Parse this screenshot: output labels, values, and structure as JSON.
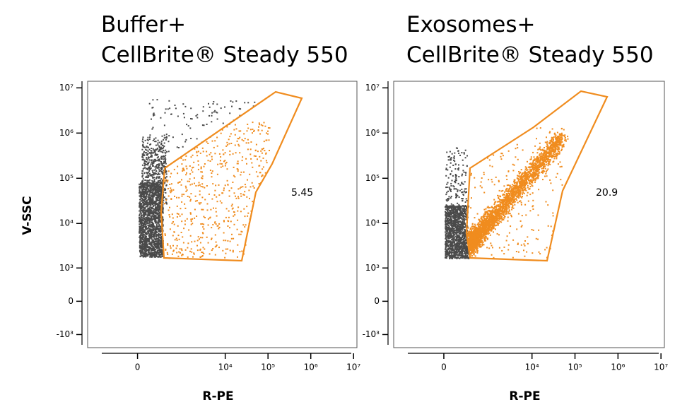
{
  "chart_data": [
    {
      "type": "scatter",
      "title_lines": [
        "Buffer+",
        "CellBrite® Steady 550"
      ],
      "y_label": "V-SSC",
      "x_label": "R-PE",
      "xlim": [
        -1300,
        12000000
      ],
      "ylim": [
        -2000,
        14000000
      ],
      "xticks": [
        0,
        {
          "value": 10000,
          "label": "10⁴"
        },
        {
          "value": 100000,
          "label": "10⁵"
        },
        {
          "value": 1000000,
          "label": "10⁶"
        },
        {
          "value": 10000000,
          "label": "10⁷"
        }
      ],
      "yticks": [
        {
          "value": -1000,
          "label": "-10³"
        },
        0,
        {
          "value": 1000,
          "label": "10³"
        },
        {
          "value": 10000,
          "label": "10⁴"
        },
        {
          "value": 100000,
          "label": "10⁵"
        },
        {
          "value": 1000000,
          "label": "10⁶"
        },
        {
          "value": 10000000,
          "label": "10⁷"
        }
      ],
      "gate_color": "#f08c1e",
      "gate_percent": 5.45
    },
    {
      "type": "scatter",
      "title_lines": [
        "Exosomes+",
        "CellBrite® Steady 550"
      ],
      "x_label": "R-PE",
      "xlim": [
        -1300,
        12000000
      ],
      "ylim": [
        -2000,
        14000000
      ],
      "xticks": [
        0,
        {
          "value": 10000,
          "label": "10⁴"
        },
        {
          "value": 100000,
          "label": "10⁵"
        },
        {
          "value": 1000000,
          "label": "10⁶"
        },
        {
          "value": 10000000,
          "label": "10⁷"
        }
      ],
      "yticks": [
        {
          "value": -1000,
          "label": "-10³"
        },
        0,
        {
          "value": 1000,
          "label": "10³"
        },
        {
          "value": 10000,
          "label": "10⁴"
        },
        {
          "value": 100000,
          "label": "10⁵"
        },
        {
          "value": 1000000,
          "label": "10⁶"
        },
        {
          "value": 10000000,
          "label": "10⁷"
        }
      ],
      "gate_color": "#f08c1e",
      "gate_percent": 20.9
    }
  ]
}
